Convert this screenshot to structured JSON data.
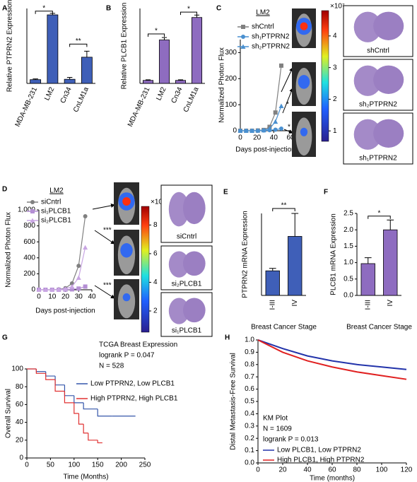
{
  "chart_data": [
    {
      "type": "bar",
      "panel": "A",
      "ylabel": "Relative PTPRN2 Expression",
      "categories": [
        "MDA-MB-231",
        "LM2",
        "Cn34",
        "CnLM1a"
      ],
      "values": [
        1,
        18.3,
        1.1,
        7
      ],
      "errors": [
        0.2,
        0.4,
        0.5,
        1.6
      ],
      "color": "#3f5fb8",
      "ylim": [
        0,
        20
      ],
      "annotations": [
        "*",
        "**"
      ]
    },
    {
      "type": "bar",
      "panel": "B",
      "ylabel": "Relative PLCB1 Expression",
      "categories": [
        "MDA-MB-231",
        "LM2",
        "Cn34",
        "CnLM1a"
      ],
      "values": [
        1,
        14.5,
        1,
        22
      ],
      "errors": [
        0.2,
        0.8,
        0.2,
        0.8
      ],
      "color": "#8e6cc0",
      "ylim": [
        0,
        25
      ],
      "annotations": [
        "*",
        "*"
      ]
    },
    {
      "type": "line",
      "panel": "C",
      "title": "LM2",
      "ylabel": "Normalized Photon Flux",
      "xlabel": "Days post-injection",
      "x": [
        0,
        7,
        14,
        21,
        28,
        35,
        42,
        49
      ],
      "series": [
        {
          "name": "shCntrl",
          "color": "#808080",
          "marker": "square",
          "values": [
            0,
            0,
            0,
            1,
            3,
            15,
            70,
            250
          ]
        },
        {
          "name": "sh₁PTPRN2",
          "color": "#4a90d0",
          "marker": "circle",
          "values": [
            0,
            0,
            0,
            0,
            1,
            2,
            4,
            8
          ]
        },
        {
          "name": "sh₂PTPRN2",
          "color": "#4a90d0",
          "marker": "triangle",
          "values": [
            0,
            0,
            0,
            1,
            2,
            8,
            35,
            95
          ]
        }
      ],
      "xlim": [
        0,
        60
      ],
      "xticks": [
        0,
        20,
        40,
        60
      ],
      "ylim": [
        0,
        350
      ],
      "yticks": [
        0,
        100,
        200,
        300
      ],
      "annotations": [
        "*",
        "*"
      ],
      "colorbar": {
        "label": "×10⁷",
        "lim": [
          0.67,
          4.8
        ],
        "ticks": [
          1,
          2,
          3,
          4
        ]
      },
      "image_labels": [
        "shCntrl",
        "sh₂PTPRN2",
        "sh₁PTPRN2"
      ]
    },
    {
      "type": "line",
      "panel": "D",
      "title": "LM2",
      "ylabel": "Normalized Photon Flux",
      "xlabel": "Days post-injection",
      "x": [
        0,
        5,
        10,
        15,
        20,
        25,
        30,
        35
      ],
      "series": [
        {
          "name": "siCntrl",
          "color": "#808080",
          "marker": "circle",
          "values": [
            0,
            0,
            0,
            5,
            20,
            80,
            300,
            920
          ]
        },
        {
          "name": "si₁PLCB1",
          "color": "#b48fd4",
          "marker": "square",
          "values": [
            0,
            0,
            0,
            0,
            2,
            5,
            15,
            40
          ]
        },
        {
          "name": "si₂PLCB1",
          "color": "#c9a6e3",
          "marker": "triangle",
          "values": [
            0,
            0,
            0,
            3,
            10,
            40,
            150,
            530
          ]
        }
      ],
      "xlim": [
        0,
        40
      ],
      "xticks": [
        0,
        10,
        20,
        30,
        40
      ],
      "ylim": [
        0,
        1000
      ],
      "yticks": [
        0,
        200,
        400,
        600,
        800,
        {
          "value": 1000,
          "label": "1,000"
        }
      ],
      "annotations": [
        "***",
        "***"
      ],
      "colorbar": {
        "label": "×10⁷",
        "lim": [
          0.52,
          9.3
        ],
        "ticks": [
          2,
          4,
          6,
          8
        ]
      },
      "image_labels": [
        "siCntrl",
        "si₂PLCB1",
        "si₁PLCB1"
      ]
    },
    {
      "type": "bar",
      "panel": "E",
      "ylabel": "PTPRN2 mRNA Expression",
      "xlabel": "Breast Cancer Stage",
      "categories": [
        "I-III",
        "IV"
      ],
      "values": [
        1.5,
        3.6
      ],
      "errors": [
        0.15,
        1.4
      ],
      "color": "#3f5fb8",
      "ylim": [
        0,
        5
      ],
      "annotations": [
        "**"
      ]
    },
    {
      "type": "bar",
      "panel": "F",
      "ylabel": "PLCB1 mRNA Expression",
      "xlabel": "Breast Cancer Stage",
      "categories": [
        "I-III",
        "IV"
      ],
      "values": [
        0.97,
        2.0
      ],
      "errors": [
        0.18,
        0.3
      ],
      "color": "#8e6cc0",
      "ylim": [
        0,
        2.5
      ],
      "yticks": [
        {
          "value": 0,
          "label": "0.0"
        },
        0.5,
        {
          "value": 1,
          "label": "1.0"
        },
        1.5,
        {
          "value": 2,
          "label": "2.0"
        },
        2.5
      ],
      "annotations": [
        "*"
      ]
    },
    {
      "type": "line",
      "drawstyle": "steps-post",
      "panel": "G",
      "ylabel": "Overall Survival",
      "xlabel": "Time (Months)",
      "annotations": [
        "TCGA Breast Expression",
        "logrank P = 0.047",
        "N = 528"
      ],
      "series": [
        {
          "name": "Low PTPRN2, Low PLCB1",
          "color": "#3355aa",
          "x": [
            0,
            20,
            40,
            60,
            80,
            100,
            120,
            150,
            180,
            230
          ],
          "values": [
            100,
            97,
            92,
            82,
            70,
            62,
            55,
            47,
            47,
            47
          ]
        },
        {
          "name": "High PTPRN2, High PLCB1",
          "color": "#e03030",
          "x": [
            0,
            20,
            40,
            60,
            80,
            100,
            110,
            120,
            130,
            150,
            160
          ],
          "values": [
            100,
            95,
            88,
            75,
            62,
            50,
            38,
            28,
            20,
            17,
            17
          ]
        }
      ],
      "xlim": [
        0,
        250
      ],
      "xticks": [
        0,
        50,
        100,
        150,
        200,
        250
      ],
      "ylim": [
        0,
        100
      ],
      "yticks": [
        0,
        20,
        40,
        60,
        80,
        100
      ]
    },
    {
      "type": "line",
      "panel": "H",
      "ylabel": "Distal Metastasis-Free Survival",
      "xlabel": "Time (months)",
      "annotations": [
        "KM Plot",
        "N = 1609",
        "logrank P = 0.013"
      ],
      "series": [
        {
          "name": "Low PLCB1, Low PTPRN2",
          "color": "#2233aa",
          "x": [
            0,
            20,
            40,
            60,
            80,
            100,
            120
          ],
          "values": [
            1,
            0.93,
            0.87,
            0.83,
            0.8,
            0.78,
            0.76
          ]
        },
        {
          "name": "High PLCB1, High PTPRN2",
          "color": "#e02020",
          "x": [
            0,
            20,
            40,
            60,
            80,
            100,
            120
          ],
          "values": [
            1,
            0.9,
            0.83,
            0.78,
            0.74,
            0.71,
            0.68
          ]
        }
      ],
      "xlim": [
        0,
        120
      ],
      "xticks": [
        0,
        20,
        40,
        60,
        80,
        100,
        120
      ],
      "ylim": [
        0,
        1
      ],
      "yticks": [
        {
          "value": 0,
          "label": "0.0"
        },
        0.1,
        0.2,
        0.3,
        0.4,
        0.5,
        0.6,
        0.7,
        0.8,
        0.9,
        {
          "value": 1,
          "label": "1.0"
        }
      ]
    }
  ]
}
